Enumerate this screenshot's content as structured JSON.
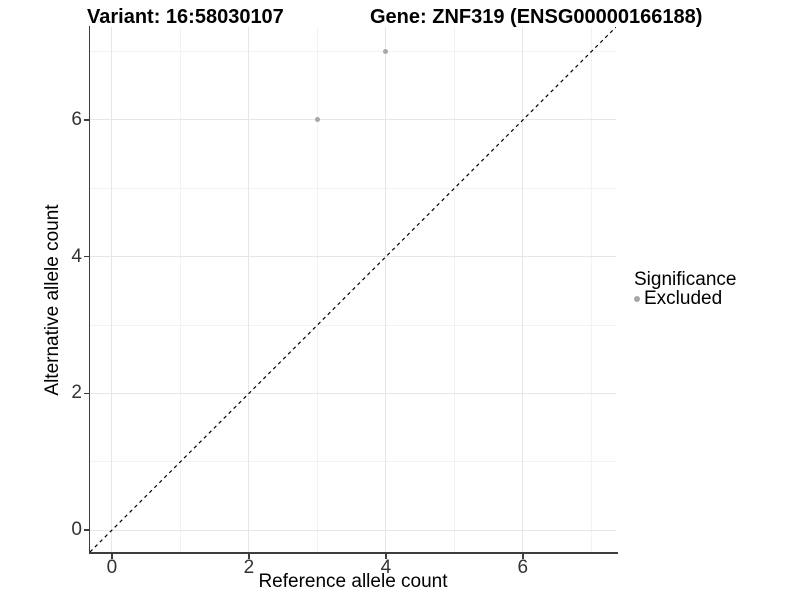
{
  "header": {
    "title_left": "Variant: 16:58030107",
    "title_right": "Gene: ZNF319 (ENSG00000166188)"
  },
  "chart_data": {
    "type": "scatter",
    "xlabel": "Reference allele count",
    "ylabel": "Alternative allele count",
    "xlim": [
      -0.32,
      7.36
    ],
    "ylim": [
      -0.32,
      7.36
    ],
    "x_major_ticks": [
      0,
      2,
      4,
      6
    ],
    "y_major_ticks": [
      0,
      2,
      4,
      6
    ],
    "x_minor_ticks": [
      1,
      3,
      5,
      7
    ],
    "y_minor_ticks": [
      1,
      3,
      5,
      7
    ],
    "grid": true,
    "series": [
      {
        "name": "Excluded",
        "color": "#a8a8a8",
        "points": [
          {
            "x": 3,
            "y": 6
          },
          {
            "x": 4,
            "y": 7
          }
        ]
      }
    ],
    "identity_line": {
      "style": "dashed",
      "color": "#000000",
      "from": [
        -0.32,
        -0.32
      ],
      "to": [
        7.36,
        7.36
      ]
    },
    "legend": {
      "title": "Significance",
      "position": "right",
      "entries": [
        {
          "label": "Excluded",
          "color": "#a8a8a8"
        }
      ]
    },
    "colors": {
      "axis_line": "#3d3d3d",
      "grid_major": "#e6e6e6",
      "grid_minor": "#f2f2f2",
      "tick_text": "#333333",
      "background": "#ffffff"
    }
  }
}
